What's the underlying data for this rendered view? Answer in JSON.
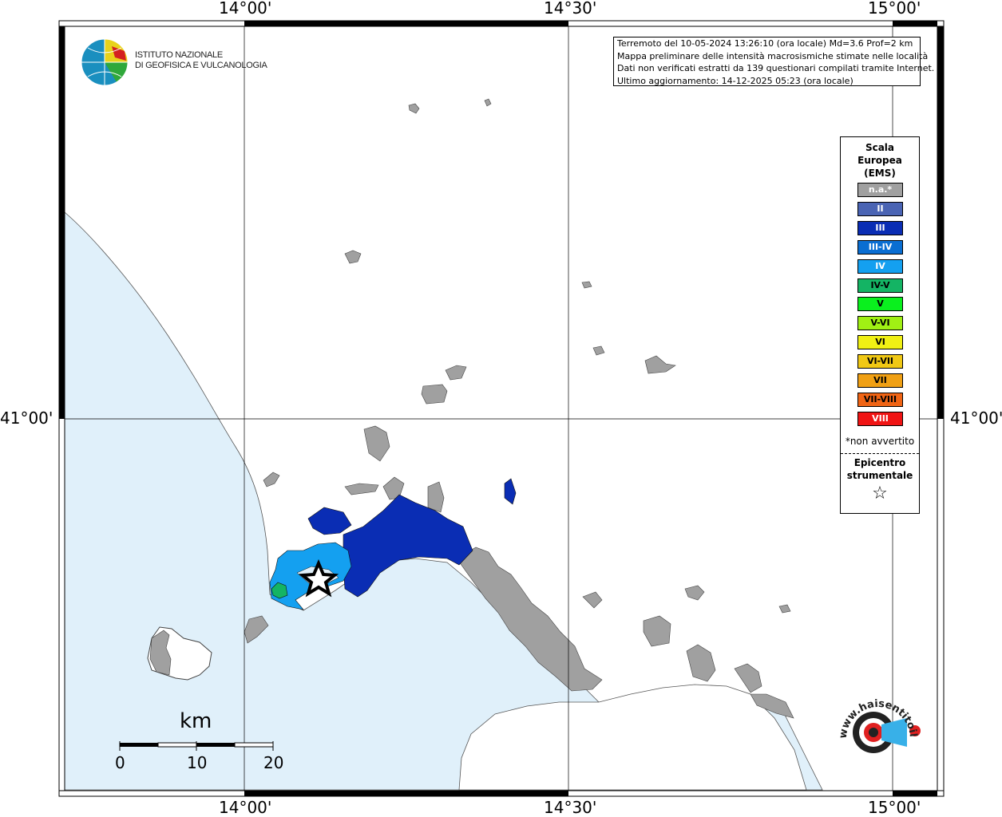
{
  "map": {
    "top_labels": [
      "14°00'",
      "14°30'",
      "15°00'"
    ],
    "bottom_labels": [
      "14°00'",
      "14°30'",
      "15°00'"
    ],
    "left_label": "41°00'",
    "right_label": "41°00'"
  },
  "logo": {
    "line1": "ISTITUTO NAZIONALE",
    "line2": "DI GEOFISICA E VULCANOLOGIA"
  },
  "info": {
    "line1": "Terremoto del 10-05-2024 13:26:10 (ora locale) Md=3.6 Prof=2 km",
    "line2": "Mappa preliminare delle intensità macrosismiche stimate nelle località",
    "line3": "Dati non verificati estratti da 139 questionari compilati tramite Internet.",
    "line4": "Ultimo aggiornamento: 14-12-2025 05:23 (ora locale)"
  },
  "legend": {
    "title1": "Scala",
    "title2": "Europea",
    "title3": "(EMS)",
    "items": [
      {
        "label": "n.a.*",
        "color": "#a0a0a0"
      },
      {
        "label": "II",
        "color": "#4a64b4"
      },
      {
        "label": "III",
        "color": "#0a2db4"
      },
      {
        "label": "III-IV",
        "color": "#0a6ed2"
      },
      {
        "label": "IV",
        "color": "#14a0f0"
      },
      {
        "label": "IV-V",
        "color": "#14b464"
      },
      {
        "label": "V",
        "color": "#0af01e"
      },
      {
        "label": "V-VI",
        "color": "#a0f014"
      },
      {
        "label": "VI",
        "color": "#f0f014"
      },
      {
        "label": "VI-VII",
        "color": "#f0c814"
      },
      {
        "label": "VII",
        "color": "#f0a014"
      },
      {
        "label": "VII-VIII",
        "color": "#f06414"
      },
      {
        "label": "VIII",
        "color": "#f01414"
      }
    ],
    "note": "*non avvertito",
    "epicenter1": "Epicentro",
    "epicenter2": "strumentale",
    "star": "☆"
  },
  "scalebar": {
    "unit": "km",
    "ticks": [
      "0",
      "10",
      "20"
    ]
  },
  "watermark": {
    "text": "www.haisentitoilterremoto.it"
  }
}
